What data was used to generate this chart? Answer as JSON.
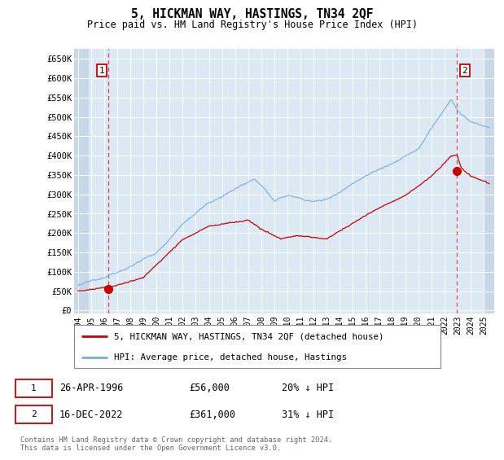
{
  "title": "5, HICKMAN WAY, HASTINGS, TN34 2QF",
  "subtitle": "Price paid vs. HM Land Registry's House Price Index (HPI)",
  "y_ticks": [
    0,
    50000,
    100000,
    150000,
    200000,
    250000,
    300000,
    350000,
    400000,
    450000,
    500000,
    550000,
    600000,
    650000
  ],
  "y_tick_labels": [
    "£0",
    "£50K",
    "£100K",
    "£150K",
    "£200K",
    "£250K",
    "£300K",
    "£350K",
    "£400K",
    "£450K",
    "£500K",
    "£550K",
    "£600K",
    "£650K"
  ],
  "xlim": [
    1993.7,
    2025.8
  ],
  "ylim": [
    -8000,
    675000
  ],
  "plot_bg_color": "#dce9f5",
  "grid_color": "#ffffff",
  "sale1_year": 1996.32,
  "sale1_price": 56000,
  "sale2_year": 2022.96,
  "sale2_price": 361000,
  "sale1_label": "1",
  "sale2_label": "2",
  "sale_color": "#cc0000",
  "hpi_color": "#7aadda",
  "legend_line1": "5, HICKMAN WAY, HASTINGS, TN34 2QF (detached house)",
  "legend_line2": "HPI: Average price, detached house, Hastings",
  "annot1_date": "26-APR-1996",
  "annot1_price": "£56,000",
  "annot1_hpi": "20% ↓ HPI",
  "annot2_date": "16-DEC-2022",
  "annot2_price": "£361,000",
  "annot2_hpi": "31% ↓ HPI",
  "footer": "Contains HM Land Registry data © Crown copyright and database right 2024.\nThis data is licensed under the Open Government Licence v3.0.",
  "x_tick_years": [
    1994,
    1995,
    1996,
    1997,
    1998,
    1999,
    2000,
    2001,
    2002,
    2003,
    2004,
    2005,
    2006,
    2007,
    2008,
    2009,
    2010,
    2011,
    2012,
    2013,
    2014,
    2015,
    2016,
    2017,
    2018,
    2019,
    2020,
    2021,
    2022,
    2023,
    2024,
    2025
  ]
}
